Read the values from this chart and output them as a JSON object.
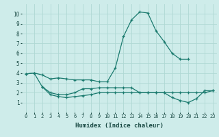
{
  "xlabel": "Humidex (Indice chaleur)",
  "xlim": [
    -0.5,
    23.5
  ],
  "ylim": [
    0,
    11
  ],
  "bg_color": "#ceecea",
  "grid_color": "#b0d8d4",
  "line_color": "#1a7a6e",
  "curve1_x": [
    0,
    1,
    2,
    3,
    4,
    5,
    6,
    7,
    8,
    9,
    10,
    11,
    12,
    13,
    14,
    15,
    16,
    17,
    18,
    19,
    20
  ],
  "curve1_y": [
    3.9,
    4.0,
    3.8,
    3.4,
    3.5,
    3.4,
    3.3,
    3.3,
    3.3,
    3.1,
    3.1,
    4.5,
    7.7,
    9.4,
    10.2,
    10.1,
    8.3,
    7.2,
    6.0,
    5.4,
    5.4
  ],
  "curve2_x": [
    0,
    1,
    2,
    3,
    4,
    5,
    6,
    7,
    8,
    9,
    10,
    11,
    12,
    13,
    14,
    15,
    16,
    17,
    18,
    19,
    20,
    21,
    22,
    23
  ],
  "curve2_y": [
    3.9,
    4.0,
    2.6,
    2.0,
    1.8,
    1.8,
    2.0,
    2.4,
    2.4,
    2.5,
    2.5,
    2.5,
    2.5,
    2.5,
    2.0,
    2.0,
    2.0,
    2.0,
    2.0,
    2.0,
    2.0,
    2.0,
    2.0,
    2.2
  ],
  "curve3_x": [
    2,
    3,
    4,
    5,
    6,
    7,
    8,
    9,
    10,
    11,
    12,
    13,
    14,
    15,
    16,
    17,
    18,
    19,
    20,
    21,
    22,
    23
  ],
  "curve3_y": [
    2.6,
    1.8,
    1.6,
    1.5,
    1.6,
    1.7,
    1.8,
    2.0,
    2.0,
    2.0,
    2.0,
    2.0,
    2.0,
    2.0,
    2.0,
    2.0,
    1.5,
    1.2,
    1.0,
    1.4,
    2.2,
    2.2
  ]
}
